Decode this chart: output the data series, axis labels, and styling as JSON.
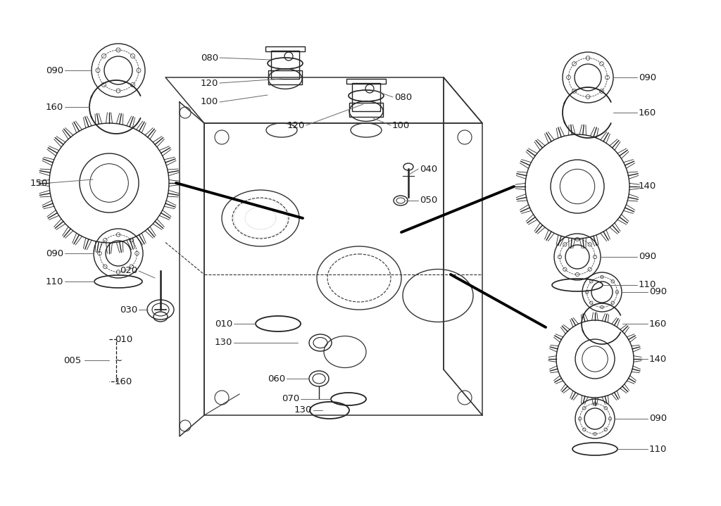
{
  "bg_color": "#ffffff",
  "lc": "#222222",
  "gray": "#666666",
  "fig_w": 10.24,
  "fig_h": 7.19,
  "xlim": [
    0,
    1024
  ],
  "ylim": [
    0,
    719
  ]
}
